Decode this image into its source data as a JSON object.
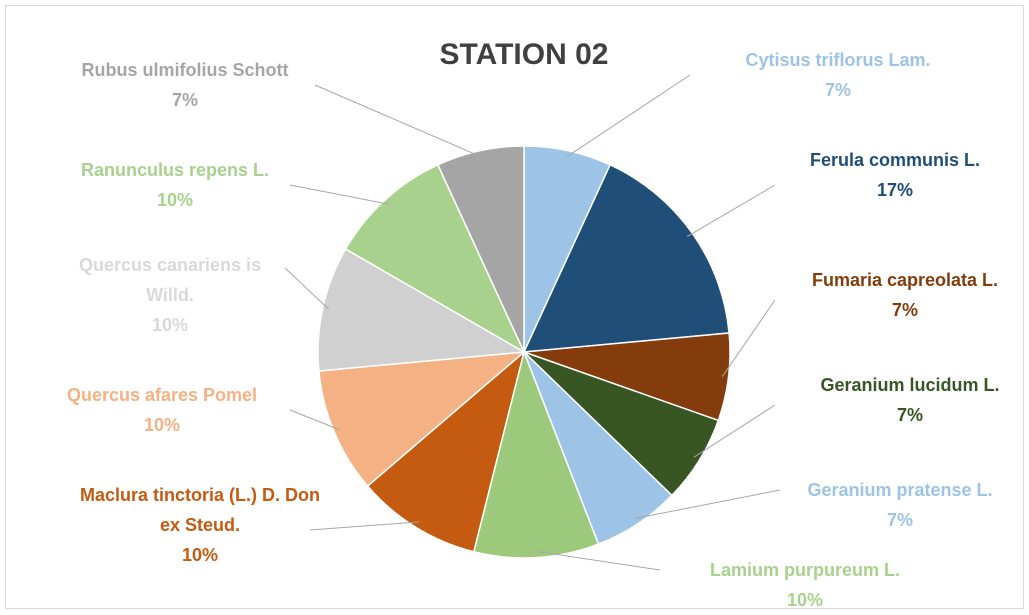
{
  "chart_data": {
    "type": "pie",
    "title": "STATION 02",
    "categories": [
      "Cytisus triflorus Lam.",
      "Ferula communis L.",
      "Fumaria capreolata L.",
      "Geranium lucidum L.",
      "Geranium pratense L.",
      "Lamium purpureum L.",
      "Maclura tinctoria (L.) D. Don ex Steud.",
      "Quercus afares Pomel",
      "Quercus canariens is Willd.",
      "Ranunculus repens L.",
      "Rubus ulmifolius Schott"
    ],
    "values": [
      7,
      17,
      7,
      7,
      7,
      10,
      10,
      10,
      10,
      10,
      7
    ],
    "value_labels": [
      "7%",
      "17%",
      "7%",
      "7%",
      "7%",
      "10%",
      "10%",
      "10%",
      "10%",
      "10%",
      "7%"
    ],
    "colors": [
      "#9dc3e6",
      "#1f4e79",
      "#843c0c",
      "#375623",
      "#9dc3e6",
      "#9dc97c",
      "#c55a11",
      "#f4b183",
      "#d0d0d0",
      "#a9d18e",
      "#a5a5a5"
    ]
  }
}
